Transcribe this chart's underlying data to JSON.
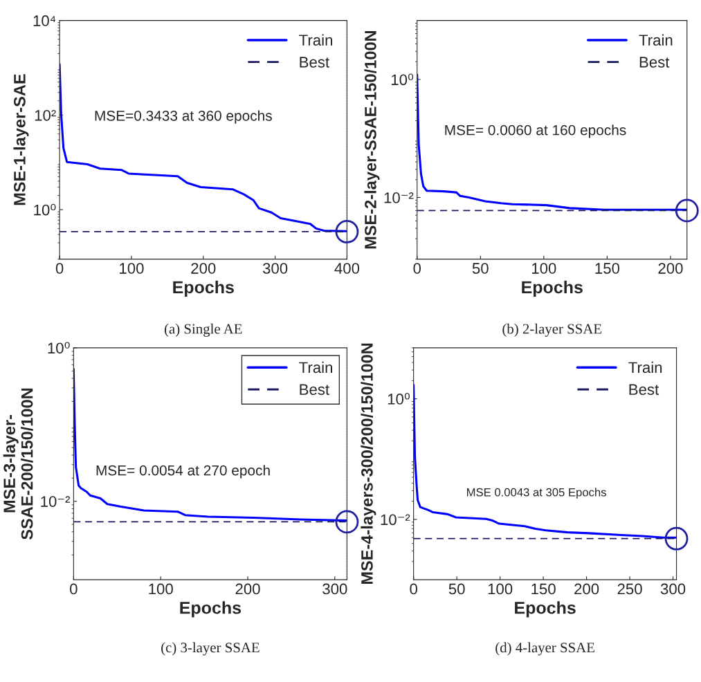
{
  "chart_data": [
    {
      "type": "line",
      "title": "(a) Single AE",
      "xlabel": "Epochs",
      "ylabel": "MSE-1-layer-SAE",
      "log": "y",
      "grid": false,
      "legend": "top right",
      "xlim": [
        0,
        400
      ],
      "xticks": [
        0,
        100,
        200,
        300,
        400
      ],
      "ylim": [
        0.09,
        10000
      ],
      "yticks": [
        {
          "value": 1,
          "label": "10⁰"
        },
        {
          "value": 100,
          "label": "10²"
        },
        {
          "value": 10000,
          "label": "10⁴"
        }
      ],
      "annotations": [
        "MSE=0.3433 at 360 epochs"
      ],
      "ref_lines": [
        {
          "axis": "x",
          "value": 400,
          "color": "#5555cc",
          "line_style": "dotted"
        }
      ],
      "series": [
        {
          "name": "Train",
          "type": "line",
          "color": "#0000ff",
          "line_style": "solid",
          "x": [
            0,
            2.2,
            5.4,
            10.2,
            38.8,
            56.3,
            86.5,
            96.1,
            164.5,
            177.2,
            196.3,
            240.9,
            256.8,
            269.5,
            277.5,
            295,
            307.7,
            333,
            349,
            357,
            368,
            400
          ],
          "values": [
            1190,
            106,
            20,
            10.2,
            9.1,
            7.4,
            6.9,
            5.8,
            5.1,
            3.7,
            3.0,
            2.7,
            2.1,
            1.6,
            1.07,
            0.87,
            0.66,
            0.56,
            0.5,
            0.4,
            0.36,
            0.35
          ]
        },
        {
          "name": "Best",
          "type": "line",
          "color": "#1a1a60",
          "line_style": "dashed",
          "x": [
            0,
            400
          ],
          "values": [
            0.3433,
            0.3433
          ]
        },
        {
          "type": "scatter",
          "marker": "circle",
          "color": "#1f1fa0",
          "x": [
            400
          ],
          "values": [
            0.3433
          ]
        }
      ]
    },
    {
      "type": "line",
      "title": "(b) 2-layer SSAE",
      "xlabel": "Epochs",
      "ylabel": "MSE-2-layer-SSAE-150/100N",
      "log": "y",
      "grid": false,
      "legend": "top right",
      "xlim": [
        0,
        213
      ],
      "xticks": [
        0,
        50,
        100,
        150,
        200
      ],
      "ylim": [
        0.0009,
        10
      ],
      "yticks": [
        {
          "value": 0.01,
          "label": "10⁻²"
        },
        {
          "value": 1,
          "label": "10⁰"
        }
      ],
      "annotations": [
        "MSE= 0.0060 at 160 epochs"
      ],
      "ref_lines": [
        {
          "axis": "x",
          "value": 213,
          "color": "#9999dd",
          "line_style": "dotted"
        }
      ],
      "series": [
        {
          "name": "Train",
          "type": "line",
          "color": "#0000ff",
          "line_style": "solid",
          "x": [
            0,
            1.3,
            3.1,
            4.9,
            7.6,
            21,
            31,
            34,
            41,
            53.7,
            66.3,
            75.3,
            102,
            120.5,
            147.6,
            159.3,
            213
          ],
          "values": [
            1.2,
            0.078,
            0.025,
            0.0155,
            0.013,
            0.0127,
            0.0122,
            0.0106,
            0.01,
            0.0086,
            0.008,
            0.0077,
            0.0074,
            0.0066,
            0.0062,
            0.0062,
            0.0062
          ]
        },
        {
          "name": "Best",
          "type": "line",
          "color": "#1a1a60",
          "line_style": "dashed",
          "x": [
            0,
            213
          ],
          "values": [
            0.006,
            0.006
          ]
        },
        {
          "type": "scatter",
          "marker": "circle",
          "color": "#1f1fa0",
          "x": [
            213
          ],
          "values": [
            0.006
          ]
        }
      ]
    },
    {
      "type": "line",
      "title": "(c) 3-layer SSAE",
      "xlabel": "Epochs",
      "ylabel": "MSE-3-layer-\nSSAE-200/150/100N",
      "log": "y",
      "grid": false,
      "legend": "top right",
      "xlim": [
        0,
        314
      ],
      "xticks": [
        0,
        100,
        200,
        300
      ],
      "ylim": [
        0.00095,
        1
      ],
      "yticks": [
        {
          "value": 0.01,
          "label": "10⁻²"
        },
        {
          "value": 1,
          "label": "10⁰"
        }
      ],
      "annotations": [
        "MSE= 0.0054 at 270 epoch"
      ],
      "ref_lines": [
        {
          "axis": "x",
          "value": 314,
          "color": "#5555cc",
          "line_style": "dotted"
        }
      ],
      "series": [
        {
          "name": "Train",
          "type": "line",
          "color": "#0000ff",
          "line_style": "solid",
          "x": [
            0,
            1.3,
            2.6,
            5.8,
            8.4,
            15,
            19,
            30.8,
            38.7,
            54.5,
            80.8,
            120,
            128,
            154,
            207,
            260,
            314
          ],
          "values": [
            0.53,
            0.1,
            0.028,
            0.016,
            0.0148,
            0.0133,
            0.0119,
            0.0109,
            0.0092,
            0.0085,
            0.0076,
            0.0073,
            0.0066,
            0.0063,
            0.0061,
            0.0058,
            0.0056
          ]
        },
        {
          "name": "Best",
          "type": "line",
          "color": "#1a1a60",
          "line_style": "dashed",
          "x": [
            0,
            314
          ],
          "values": [
            0.0054,
            0.0054
          ]
        },
        {
          "type": "scatter",
          "marker": "circle",
          "color": "#1f1fa0",
          "x": [
            314
          ],
          "values": [
            0.0054
          ]
        }
      ]
    },
    {
      "type": "line",
      "title": "(d) 4-layer SSAE",
      "xlabel": "Epochs",
      "ylabel": "MSE-4-layers-300/200/150/100N",
      "log": "y",
      "grid": false,
      "legend": "top right",
      "xlim": [
        0,
        304
      ],
      "xticks": [
        0,
        50,
        100,
        150,
        200,
        250,
        300
      ],
      "ylim": [
        0.001,
        7
      ],
      "yticks": [
        {
          "value": 0.01,
          "label": "10⁻²"
        },
        {
          "value": 1,
          "label": "10⁰"
        }
      ],
      "annotations": [
        "MSE 0.0043 at 305 Epochs"
      ],
      "series": [
        {
          "name": "Train",
          "type": "line",
          "color": "#0000ff",
          "line_style": "solid",
          "x": [
            0,
            1.5,
            3.5,
            4.7,
            7.7,
            17,
            22,
            39.4,
            49,
            84,
            91,
            98.8,
            128.5,
            141,
            153,
            178,
            202.7,
            240,
            264.6,
            289,
            304
          ],
          "values": [
            1.7,
            0.11,
            0.037,
            0.021,
            0.016,
            0.0143,
            0.0132,
            0.0122,
            0.0108,
            0.0102,
            0.0096,
            0.0085,
            0.0077,
            0.007,
            0.0066,
            0.0061,
            0.0059,
            0.0055,
            0.0053,
            0.005,
            0.005
          ]
        },
        {
          "name": "Best",
          "type": "line",
          "color": "#1a1a60",
          "line_style": "dashed",
          "x": [
            0,
            304
          ],
          "values": [
            0.0048,
            0.0048
          ]
        },
        {
          "type": "scatter",
          "marker": "circle",
          "color": "#1f1fa0",
          "x": [
            304
          ],
          "values": [
            0.0048
          ]
        }
      ]
    }
  ]
}
